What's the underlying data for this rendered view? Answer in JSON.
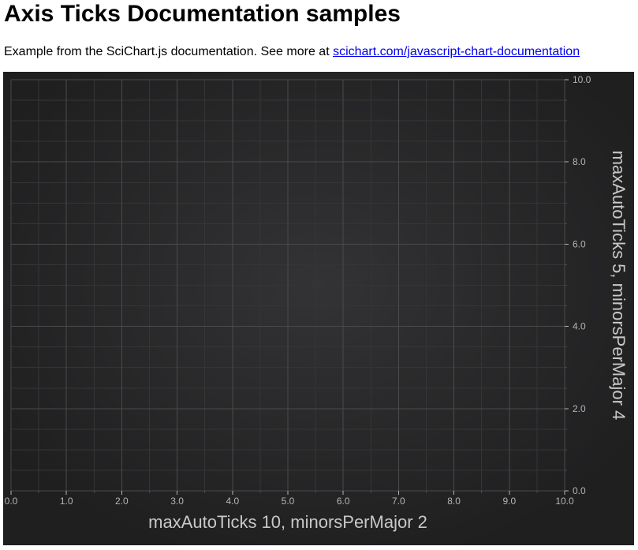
{
  "page": {
    "title": "Axis Ticks Documentation samples",
    "intro_text": "Example from the SciChart.js documentation. See more at ",
    "link_text": "scichart.com/javascript-chart-documentation"
  },
  "chart_data": {
    "type": "line",
    "series": [],
    "xlabel": "maxAutoTicks 10, minorsPerMajor 2",
    "ylabel": "maxAutoTicks 5, minorsPerMajor 4",
    "xlim": [
      0,
      10
    ],
    "ylim": [
      0,
      10
    ],
    "x_ticks": [
      0,
      1,
      2,
      3,
      4,
      5,
      6,
      7,
      8,
      9,
      10
    ],
    "y_ticks": [
      0,
      2,
      4,
      6,
      8,
      10
    ],
    "x_minors_per_major": 2,
    "y_minors_per_major": 4,
    "x_tick_labels": [
      "0.0",
      "1.0",
      "2.0",
      "3.0",
      "4.0",
      "5.0",
      "6.0",
      "7.0",
      "8.0",
      "9.0",
      "10.0"
    ],
    "y_tick_labels": [
      "0.0",
      "2.0",
      "4.0",
      "6.0",
      "8.0",
      "10.0"
    ],
    "grid": true,
    "y_axis_position": "right",
    "colors": {
      "background": "#2a2a2b",
      "major_grid": "#4a4a4c",
      "minor_grid": "#353537",
      "tick_label": "#b5b5b5",
      "axis_title": "#c8c8c8"
    }
  }
}
